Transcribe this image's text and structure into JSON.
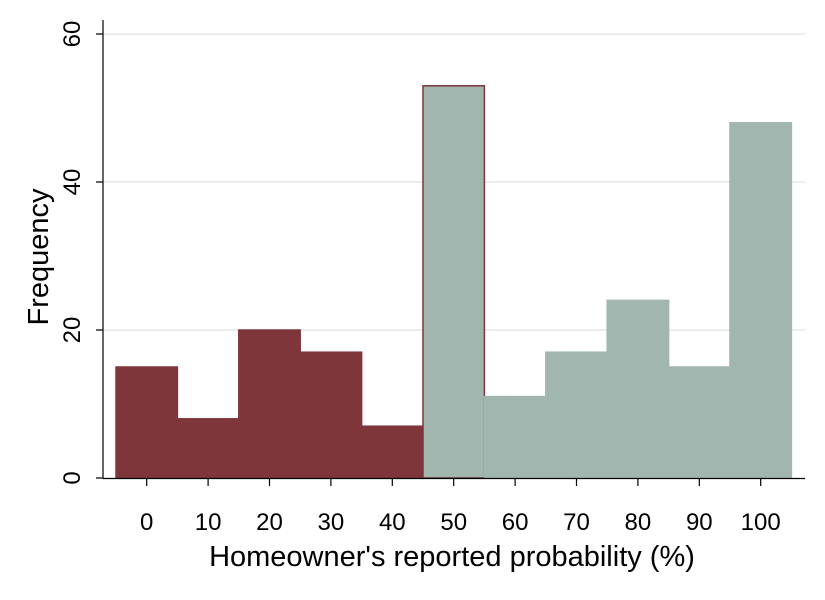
{
  "chart_data": {
    "type": "bar",
    "categories": [
      "0",
      "10",
      "20",
      "30",
      "40",
      "50",
      "60",
      "70",
      "80",
      "90",
      "100"
    ],
    "values": [
      15,
      8,
      20,
      17,
      7,
      53,
      11,
      17,
      24,
      15,
      48
    ],
    "title": "",
    "xlabel": "Homeowner's reported probability (%)",
    "ylabel": "Frequency",
    "ylim": [
      0,
      60
    ],
    "yticks": [
      "0",
      "20",
      "40",
      "60"
    ],
    "grid": true,
    "bar_colors": [
      "#7e363b",
      "#7e363b",
      "#7e363b",
      "#7e363b",
      "#7e363b",
      "#a0b6ae",
      "#a0b6ae",
      "#a0b6ae",
      "#a0b6ae",
      "#a0b6ae",
      "#a0b6ae"
    ],
    "bar_outline_colors": [
      "#7e363b",
      "#7e363b",
      "#7e363b",
      "#7e363b",
      "#7e363b",
      "#7e363b",
      "#a0b6ae",
      "#a0b6ae",
      "#a0b6ae",
      "#a0b6ae",
      "#a0b6ae"
    ]
  }
}
